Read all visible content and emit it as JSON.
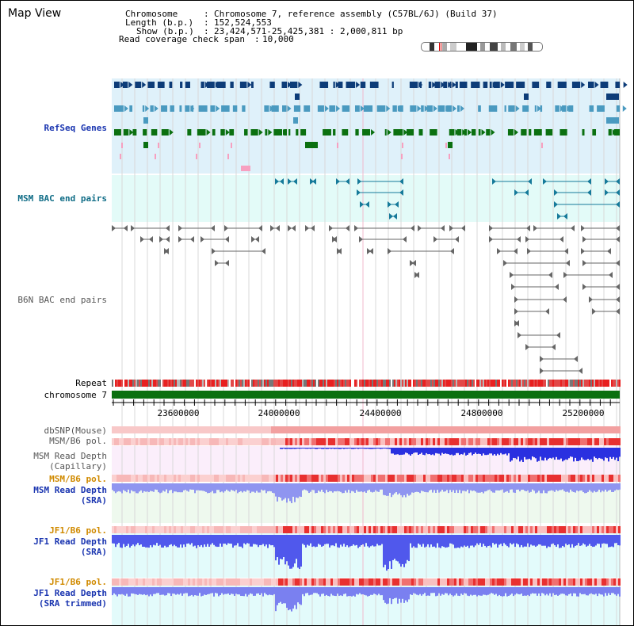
{
  "title": "Map View",
  "info": {
    "chromosome_label": "Chromosome",
    "chromosome_value": "Chromosome 7, reference assembly (C57BL/6J) (Build 37)",
    "length_label": "Length (b.p.)",
    "length_value": "152,524,553",
    "show_label": "Show (b.p.)",
    "show_value": "23,424,571-25,425,381 : 2,000,811 bp",
    "coverage_label": "Read coverage check span",
    "coverage_value": "10,000"
  },
  "tracks": {
    "refseq": "RefSeq Genes",
    "msm_bac": "MSM BAC end pairs",
    "b6n_bac": "B6N BAC end pairs",
    "repeat": "Repeat",
    "chromosome": "chromosome 7",
    "dbsnp": "dbSNP(Mouse)",
    "msm_b6_pol_1": "MSM/B6 pol.",
    "msm_depth_cap_1": "MSM Read Depth",
    "msm_depth_cap_2": "(Capillary)",
    "msm_b6_pol_2": "MSM/B6 pol.",
    "msm_depth_sra_1": "MSM Read Depth",
    "msm_depth_sra_2": "(SRA)",
    "jf1_b6_pol_1": "JF1/B6 pol.",
    "jf1_depth_sra_1": "JF1 Read Depth",
    "jf1_depth_sra_2": "(SRA)",
    "jf1_b6_pol_2": "JF1/B6 pol.",
    "jf1_depth_trim_1": "JF1 Read Depth",
    "jf1_depth_trim_2": "(SRA trimmed)"
  },
  "axis": {
    "ticks": [
      "23600000",
      "24000000",
      "24400000",
      "24800000",
      "25200000"
    ]
  },
  "colors": {
    "refseq_bg": "#dff1fa",
    "refseq_dark": "#0d3c78",
    "refseq_mid": "#4a9ac0",
    "refseq_green": "#0b7010",
    "msm_bg": "#e3fbf8",
    "msm_feature": "#167a9a",
    "b6n_feature": "#666666",
    "chromosome_bar": "#0b7010",
    "snp_pink": "#f4b8b8",
    "pol_red": "#e82020",
    "depth_blue": "#3340e0",
    "depth_cap_bg": "#fbeefb",
    "depth_sra_bg": "#eef9ee",
    "jf1_bg": "#e3fbfb",
    "label_blue": "#1a35b0",
    "label_teal": "#0f6c86",
    "label_orange": "#d08a00"
  }
}
